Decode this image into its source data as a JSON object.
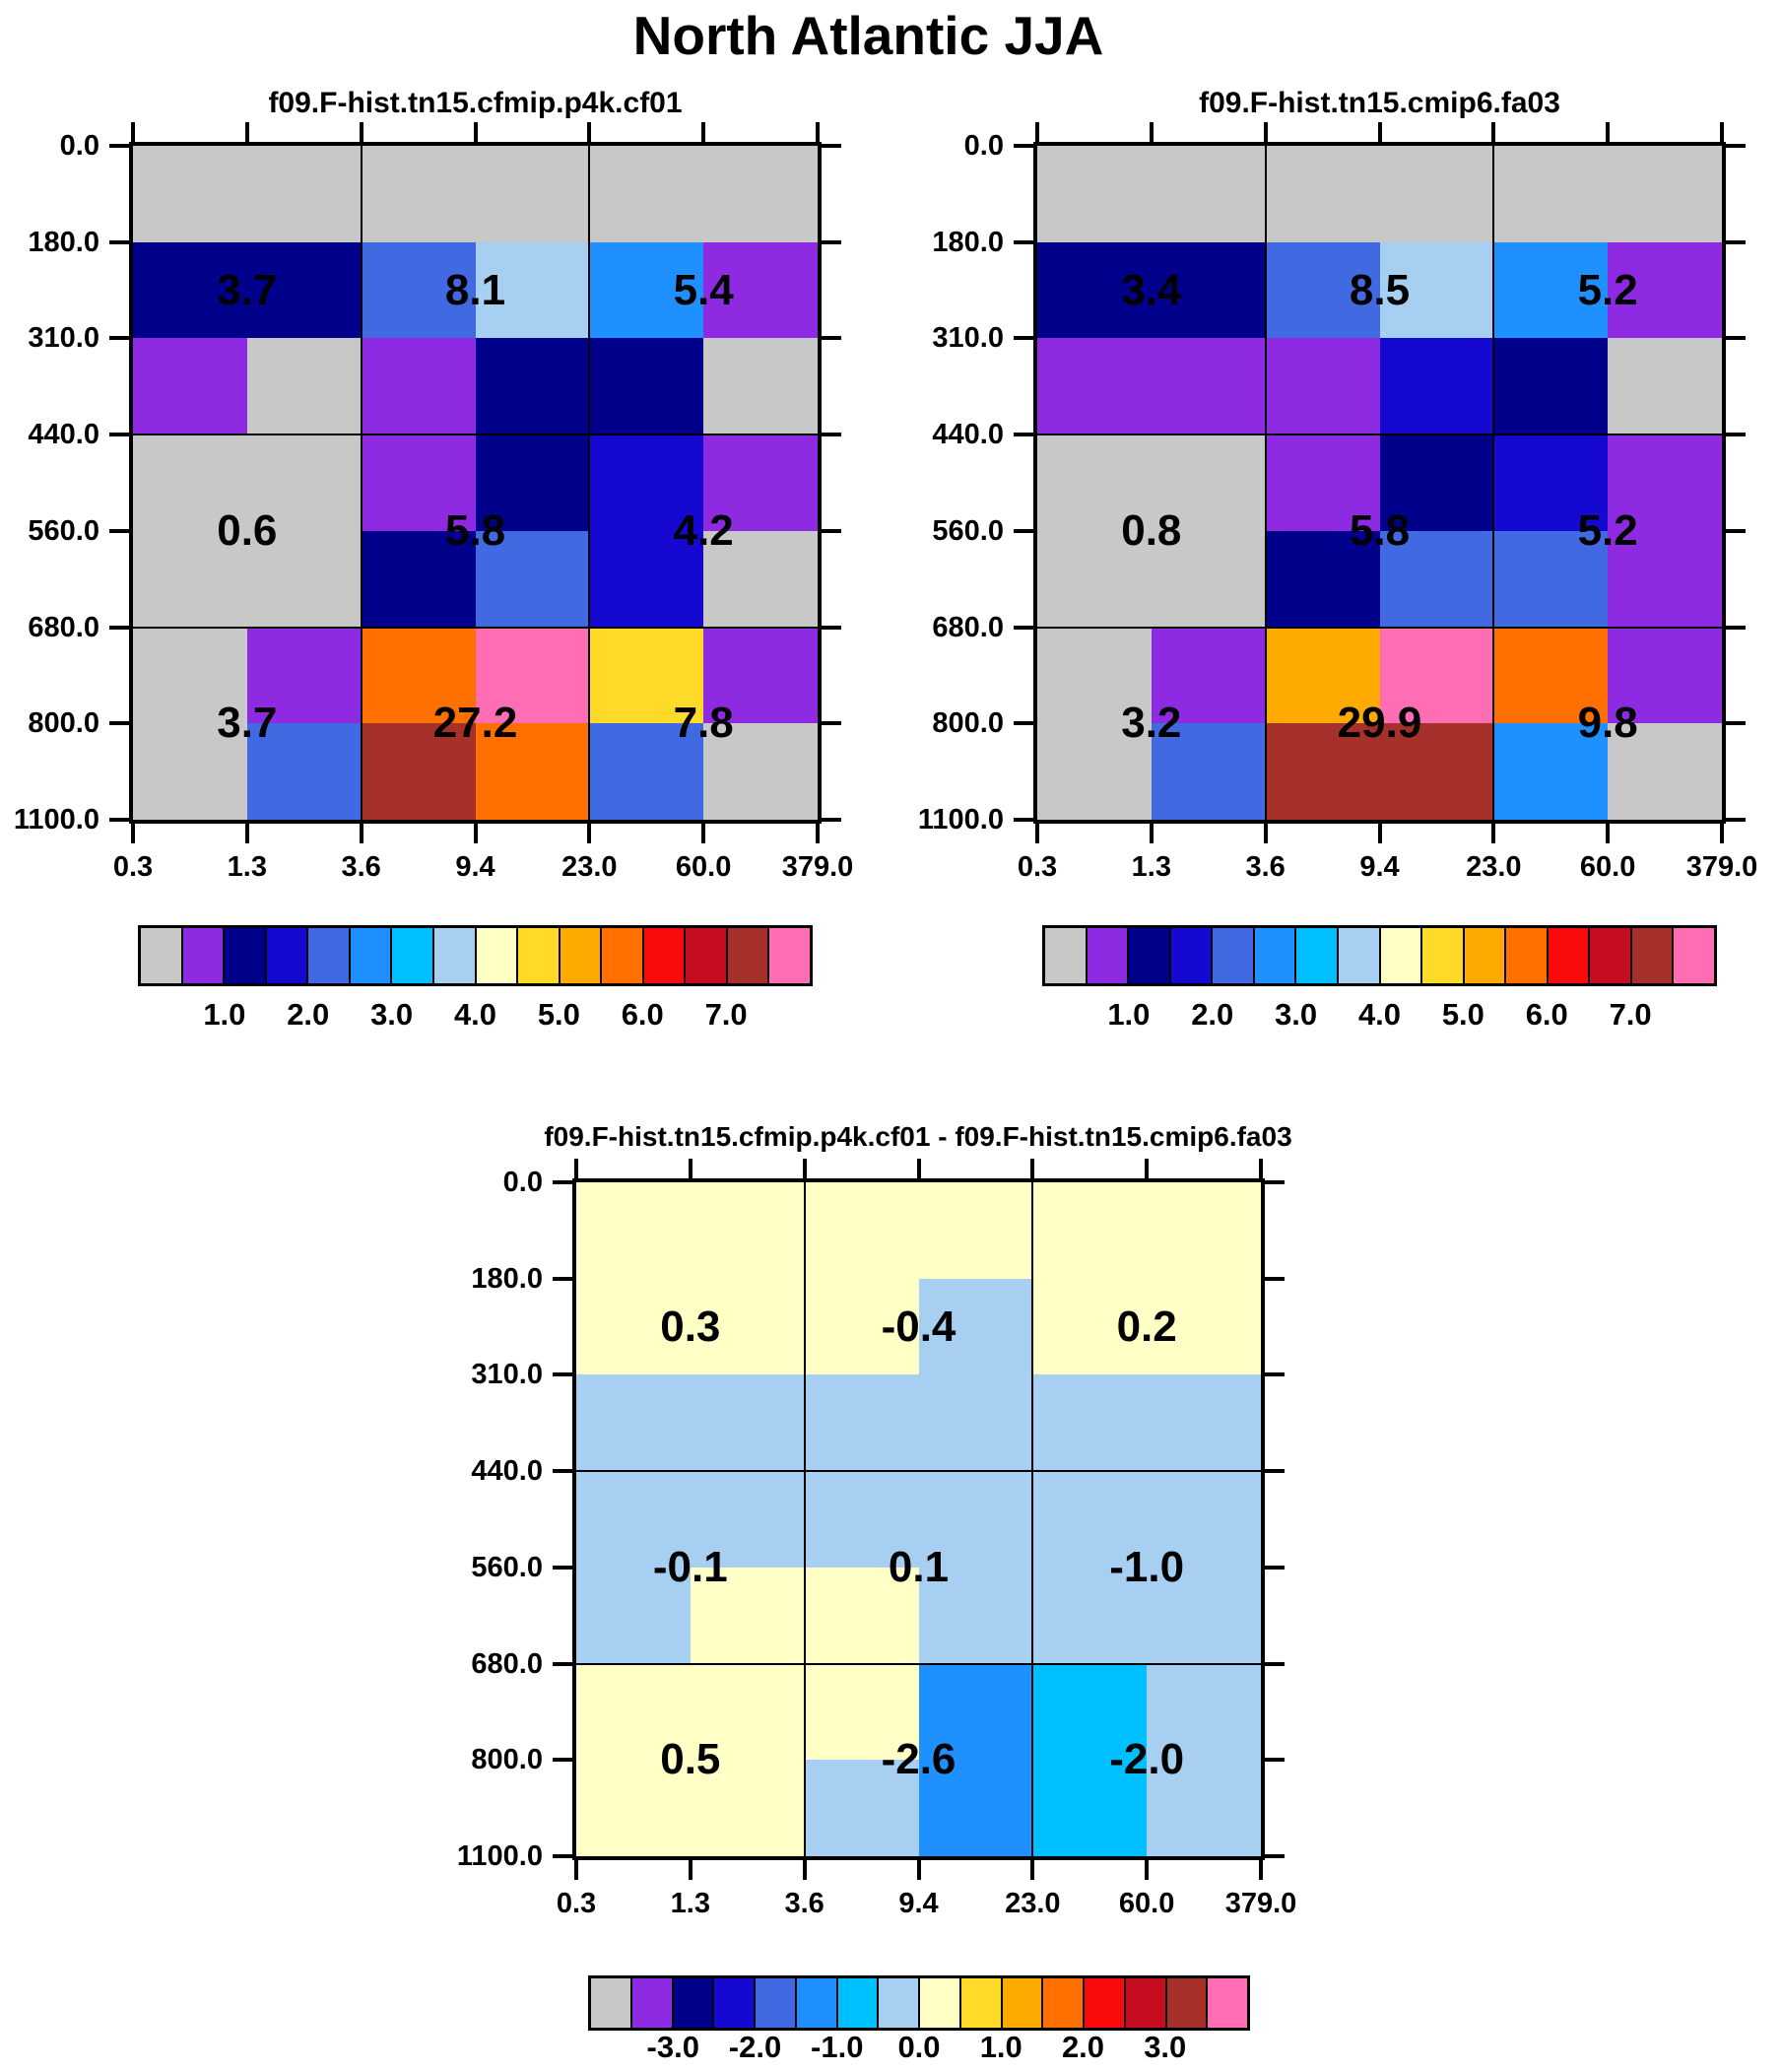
{
  "page_title": "North Atlantic JJA",
  "palette": {
    "names": [
      "gray",
      "purple",
      "navy",
      "blue",
      "royal-blue",
      "dodger-blue",
      "deep-sky-blue",
      "light-blue",
      "pale-yellow",
      "yellow",
      "amber",
      "dark-orange",
      "red",
      "crimson",
      "brick-red",
      "pink"
    ],
    "colors": [
      "#C8C8C8",
      "#8E2AE2",
      "#00008B",
      "#1509D1",
      "#4169E1",
      "#1E90FF",
      "#00BFFF",
      "#A6CFF2",
      "#FFFFC6",
      "#FFDA29",
      "#FFAA00",
      "#FF7000",
      "#FA0A0A",
      "#C60D1F",
      "#A5312A",
      "#FF6EB4"
    ]
  },
  "chart_data": [
    {
      "type": "heatmap",
      "title": "f09.F-hist.tn15.cfmip.p4k.cf01",
      "x_tick_labels": [
        "0.3",
        "1.3",
        "3.6",
        "9.4",
        "23.0",
        "60.0",
        "379.0"
      ],
      "y_tick_labels": [
        "0.0",
        "180.0",
        "310.0",
        "440.0",
        "560.0",
        "680.0",
        "800.0",
        "1100.0"
      ],
      "cell_palette_index": [
        [
          0,
          0,
          0,
          0,
          0,
          0
        ],
        [
          2,
          2,
          4,
          7,
          5,
          1
        ],
        [
          1,
          0,
          1,
          2,
          2,
          0
        ],
        [
          0,
          0,
          1,
          2,
          3,
          1
        ],
        [
          0,
          0,
          2,
          4,
          3,
          0
        ],
        [
          0,
          1,
          11,
          15,
          9,
          1
        ],
        [
          0,
          4,
          14,
          11,
          4,
          0
        ]
      ],
      "block_sum_labels": [
        [
          "3.7",
          "8.1",
          "5.4"
        ],
        [
          "0.6",
          "5.8",
          "4.2"
        ],
        [
          "3.7",
          "27.2",
          "7.8"
        ]
      ],
      "colorbar_tick_labels": [
        "1.0",
        "2.0",
        "3.0",
        "4.0",
        "5.0",
        "6.0",
        "7.0"
      ]
    },
    {
      "type": "heatmap",
      "title": "f09.F-hist.tn15.cmip6.fa03",
      "x_tick_labels": [
        "0.3",
        "1.3",
        "3.6",
        "9.4",
        "23.0",
        "60.0",
        "379.0"
      ],
      "y_tick_labels": [
        "0.0",
        "180.0",
        "310.0",
        "440.0",
        "560.0",
        "680.0",
        "800.0",
        "1100.0"
      ],
      "cell_palette_index": [
        [
          0,
          0,
          0,
          0,
          0,
          0
        ],
        [
          2,
          2,
          4,
          7,
          5,
          1
        ],
        [
          1,
          1,
          1,
          3,
          2,
          0
        ],
        [
          0,
          0,
          1,
          2,
          3,
          1
        ],
        [
          0,
          0,
          2,
          4,
          4,
          1
        ],
        [
          0,
          1,
          10,
          15,
          11,
          1
        ],
        [
          0,
          4,
          14,
          14,
          5,
          0
        ]
      ],
      "block_sum_labels": [
        [
          "3.4",
          "8.5",
          "5.2"
        ],
        [
          "0.8",
          "5.8",
          "5.2"
        ],
        [
          "3.2",
          "29.9",
          "9.8"
        ]
      ],
      "colorbar_tick_labels": [
        "1.0",
        "2.0",
        "3.0",
        "4.0",
        "5.0",
        "6.0",
        "7.0"
      ]
    },
    {
      "type": "heatmap",
      "title": "f09.F-hist.tn15.cfmip.p4k.cf01 - f09.F-hist.tn15.cmip6.fa03",
      "x_tick_labels": [
        "0.3",
        "1.3",
        "3.6",
        "9.4",
        "23.0",
        "60.0",
        "379.0"
      ],
      "y_tick_labels": [
        "0.0",
        "180.0",
        "310.0",
        "440.0",
        "560.0",
        "680.0",
        "800.0",
        "1100.0"
      ],
      "cell_palette_index": [
        [
          8,
          8,
          8,
          8,
          8,
          8
        ],
        [
          8,
          8,
          8,
          7,
          8,
          8
        ],
        [
          7,
          7,
          7,
          7,
          7,
          7
        ],
        [
          7,
          7,
          7,
          7,
          7,
          7
        ],
        [
          7,
          8,
          8,
          7,
          7,
          7
        ],
        [
          8,
          8,
          8,
          5,
          6,
          7
        ],
        [
          8,
          8,
          7,
          5,
          6,
          7
        ]
      ],
      "block_sum_labels": [
        [
          "0.3",
          "-0.4",
          "0.2"
        ],
        [
          "-0.1",
          "0.1",
          "-1.0"
        ],
        [
          "0.5",
          "-2.6",
          "-2.0"
        ]
      ],
      "colorbar_tick_labels": [
        "-3.0",
        "-2.0",
        "-1.0",
        "0.0",
        "1.0",
        "2.0",
        "3.0"
      ]
    }
  ]
}
